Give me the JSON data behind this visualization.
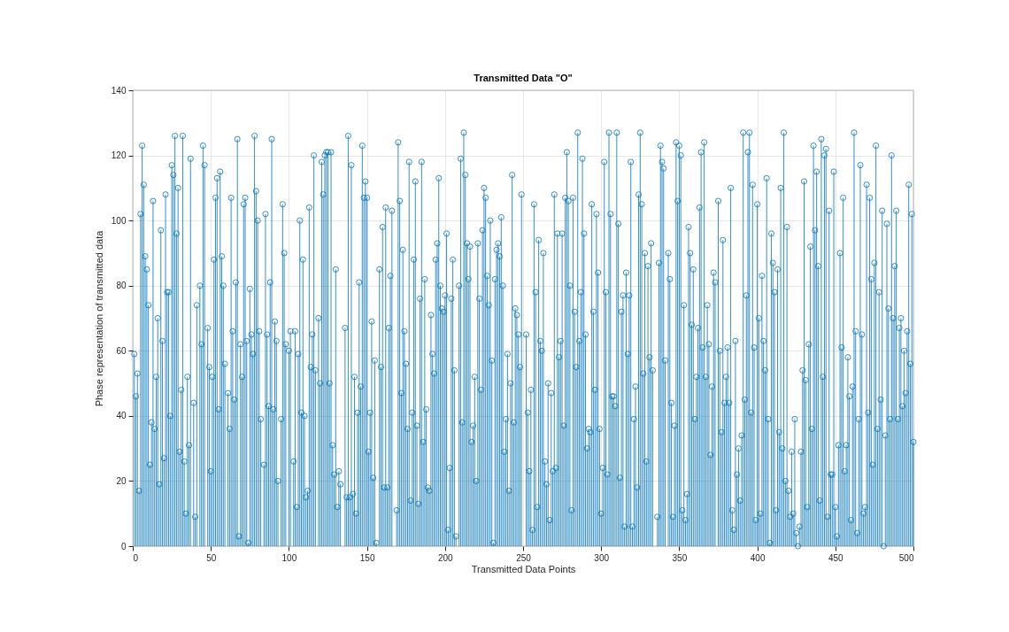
{
  "chart_data": {
    "type": "lollipop",
    "title": "Transmitted Data \"O\"",
    "xlabel": "Transmitted Data Points",
    "ylabel": "Phase representation of transmitted data",
    "color": "#0072bd",
    "marker": "circle",
    "grid": true,
    "xlim": [
      0,
      500
    ],
    "xticks": [
      0,
      50,
      100,
      150,
      200,
      250,
      300,
      350,
      400,
      450,
      500
    ],
    "ylim": [
      0,
      140
    ],
    "yticks": [
      0,
      20,
      40,
      60,
      80,
      100,
      120,
      140
    ],
    "x": [
      1,
      2,
      3,
      4,
      5,
      6,
      7,
      8,
      9,
      10,
      11,
      12,
      13,
      14,
      15,
      16,
      17,
      18,
      19,
      20,
      21,
      22,
      23,
      24,
      25,
      26,
      27,
      28,
      29,
      30,
      31,
      32,
      33,
      34,
      35,
      36,
      37,
      39,
      40,
      41,
      43,
      44,
      45,
      46,
      48,
      49,
      50,
      51,
      52,
      53,
      54,
      55,
      56,
      57,
      58,
      59,
      61,
      62,
      63,
      64,
      65,
      66,
      67,
      68,
      69,
      70,
      71,
      72,
      73,
      74,
      75,
      76,
      77,
      78,
      79,
      80,
      81,
      82,
      84,
      85,
      86,
      87,
      88,
      89,
      90,
      91,
      92,
      93,
      95,
      96,
      97,
      98,
      100,
      101,
      103,
      104,
      105,
      106,
      107,
      108,
      109,
      110,
      111,
      112,
      113,
      114,
      115,
      116,
      117,
      119,
      120,
      121,
      122,
      123,
      124,
      125,
      126,
      127,
      128,
      129,
      130,
      131,
      132,
      133,
      136,
      137,
      138,
      139,
      140,
      141,
      142,
      143,
      144,
      145,
      146,
      147,
      148,
      149,
      150,
      151,
      152,
      153,
      154,
      155,
      156,
      158,
      159,
      160,
      161,
      162,
      163,
      164,
      165,
      166,
      169,
      170,
      171,
      172,
      173,
      174,
      175,
      176,
      177,
      178,
      179,
      180,
      181,
      182,
      183,
      184,
      185,
      186,
      187,
      188,
      189,
      190,
      191,
      192,
      193,
      194,
      195,
      196,
      197,
      198,
      199,
      200,
      201,
      202,
      203,
      204,
      205,
      206,
      207,
      209,
      210,
      211,
      212,
      213,
      214,
      215,
      216,
      217,
      218,
      219,
      220,
      221,
      222,
      223,
      224,
      225,
      226,
      227,
      228,
      229,
      230,
      231,
      232,
      233,
      234,
      235,
      236,
      237,
      238,
      239,
      240,
      241,
      242,
      243,
      244,
      245,
      246,
      247,
      248,
      249,
      252,
      253,
      254,
      255,
      256,
      257,
      258,
      259,
      260,
      261,
      262,
      263,
      264,
      265,
      266,
      267,
      268,
      269,
      270,
      271,
      272,
      273,
      274,
      275,
      276,
      277,
      278,
      279,
      280,
      281,
      282,
      283,
      284,
      285,
      286,
      287,
      288,
      289,
      290,
      291,
      292,
      293,
      294,
      295,
      296,
      297,
      298,
      299,
      300,
      301,
      302,
      303,
      304,
      305,
      306,
      307,
      308,
      309,
      310,
      311,
      312,
      313,
      314,
      315,
      316,
      317,
      318,
      319,
      320,
      321,
      322,
      323,
      324,
      325,
      326,
      327,
      328,
      329,
      330,
      331,
      332,
      333,
      336,
      337,
      338,
      339,
      340,
      341,
      343,
      344,
      345,
      346,
      347,
      348,
      349,
      350,
      351,
      352,
      353,
      354,
      355,
      356,
      357,
      358,
      359,
      360,
      361,
      362,
      363,
      364,
      365,
      366,
      367,
      368,
      369,
      370,
      371,
      372,
      373,
      375,
      376,
      377,
      378,
      379,
      380,
      381,
      382,
      383,
      384,
      385,
      386,
      387,
      388,
      389,
      390,
      391,
      392,
      393,
      394,
      395,
      396,
      397,
      398,
      399,
      400,
      401,
      402,
      403,
      404,
      405,
      406,
      407,
      408,
      409,
      410,
      411,
      412,
      413,
      414,
      415,
      416,
      417,
      418,
      419,
      420,
      421,
      422,
      423,
      424,
      425,
      426,
      427,
      428,
      429,
      430,
      431,
      432,
      433,
      434,
      435,
      436,
      437,
      438,
      439,
      440,
      441,
      442,
      443,
      444,
      445,
      446,
      447,
      448,
      449,
      450,
      451,
      452,
      453,
      454,
      455,
      456,
      457,
      458,
      459,
      460,
      461,
      462,
      463,
      464,
      465,
      466,
      467,
      468,
      469,
      470,
      471,
      472,
      473,
      474,
      475,
      476,
      477,
      478,
      479,
      480,
      481,
      482,
      483,
      484,
      485,
      486,
      487,
      488,
      489,
      490,
      491,
      492,
      493,
      494,
      495,
      496,
      497,
      498,
      499,
      500
    ],
    "values": [
      59,
      46,
      53,
      17,
      102,
      123,
      111,
      89,
      85,
      74,
      25,
      38,
      106,
      36,
      52,
      70,
      19,
      97,
      63,
      27,
      108,
      78,
      78,
      40,
      117,
      114,
      126,
      96,
      110,
      29,
      48,
      126,
      26,
      10,
      52,
      31,
      119,
      44,
      9,
      74,
      80,
      62,
      123,
      117,
      67,
      55,
      23,
      52,
      88,
      107,
      113,
      42,
      115,
      89,
      80,
      56,
      47,
      36,
      107,
      66,
      45,
      81,
      125,
      3,
      62,
      52,
      105,
      107,
      63,
      1,
      79,
      65,
      59,
      126,
      109,
      100,
      66,
      39,
      25,
      102,
      65,
      43,
      81,
      125,
      42,
      69,
      63,
      20,
      39,
      105,
      90,
      62,
      60,
      66,
      26,
      66,
      12,
      59,
      100,
      41,
      88,
      40,
      15,
      17,
      104,
      55,
      65,
      120,
      54,
      70,
      50,
      118,
      108,
      120,
      121,
      121,
      50,
      121,
      31,
      22,
      85,
      12,
      23,
      19,
      67,
      15,
      126,
      15,
      117,
      16,
      52,
      10,
      41,
      81,
      49,
      123,
      107,
      112,
      107,
      29,
      41,
      69,
      21,
      57,
      1,
      85,
      55,
      98,
      18,
      104,
      18,
      67,
      83,
      103,
      11,
      124,
      106,
      47,
      91,
      66,
      56,
      36,
      118,
      14,
      41,
      88,
      112,
      37,
      13,
      76,
      118,
      32,
      82,
      42,
      18,
      17,
      71,
      59,
      53,
      88,
      93,
      113,
      80,
      73,
      72,
      77,
      96,
      5,
      24,
      76,
      88,
      54,
      3,
      80,
      119,
      38,
      127,
      114,
      93,
      82,
      92,
      32,
      37,
      52,
      20,
      93,
      76,
      48,
      97,
      110,
      107,
      83,
      74,
      100,
      57,
      1,
      82,
      91,
      93,
      89,
      101,
      80,
      29,
      39,
      59,
      17,
      50,
      114,
      38,
      73,
      71,
      65,
      55,
      108,
      65,
      41,
      23,
      48,
      5,
      105,
      78,
      12,
      94,
      63,
      60,
      90,
      26,
      19,
      50,
      8,
      47,
      23,
      108,
      24,
      96,
      58,
      63,
      96,
      37,
      107,
      121,
      106,
      80,
      11,
      107,
      72,
      55,
      127,
      63,
      78,
      119,
      96,
      65,
      30,
      36,
      35,
      105,
      72,
      48,
      102,
      84,
      36,
      10,
      24,
      118,
      78,
      22,
      127,
      102,
      46,
      46,
      43,
      127,
      99,
      21,
      72,
      77,
      6,
      84,
      59,
      77,
      118,
      6,
      39,
      49,
      18,
      108,
      127,
      105,
      53,
      90,
      26,
      86,
      58,
      93,
      54,
      9,
      87,
      123,
      118,
      116,
      57,
      90,
      82,
      44,
      9,
      37,
      124,
      106,
      123,
      120,
      11,
      74,
      8,
      16,
      98,
      90,
      68,
      85,
      39,
      52,
      67,
      104,
      121,
      61,
      124,
      52,
      74,
      62,
      28,
      49,
      84,
      81,
      106,
      60,
      35,
      94,
      44,
      52,
      61,
      44,
      110,
      11,
      5,
      63,
      22,
      30,
      14,
      34,
      127,
      45,
      77,
      121,
      127,
      41,
      111,
      61,
      8,
      105,
      70,
      10,
      83,
      63,
      54,
      113,
      39,
      1,
      96,
      87,
      78,
      11,
      85,
      35,
      110,
      30,
      127,
      20,
      98,
      17,
      9,
      29,
      10,
      39,
      4,
      0,
      6,
      29,
      54,
      112,
      51,
      12,
      62,
      92,
      36,
      123,
      97,
      115,
      86,
      14,
      125,
      52,
      120,
      122,
      9,
      103,
      22,
      22,
      115,
      12,
      3,
      31,
      90,
      61,
      107,
      23,
      31,
      58,
      46,
      8,
      49,
      127,
      66,
      4,
      39,
      117,
      65,
      10,
      12,
      111,
      41,
      107,
      82,
      25,
      87,
      123,
      36,
      78,
      45,
      103,
      0,
      34,
      99,
      73,
      39,
      120,
      70,
      86,
      103,
      39,
      67,
      70,
      43,
      60,
      47,
      66,
      111,
      56,
      102,
      32
    ]
  }
}
